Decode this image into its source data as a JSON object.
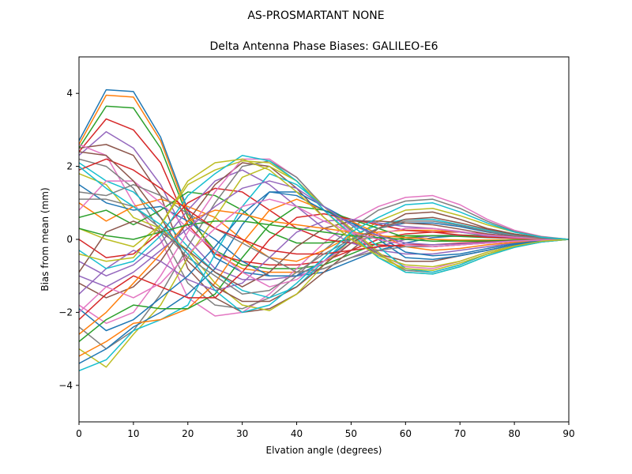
{
  "chart_data": {
    "type": "line",
    "suptitle": "AS-PROSMARTANT  NONE",
    "title": "Delta Antenna Phase Biases: GALILEO-E6",
    "xlabel": "Elvation angle (degrees)",
    "ylabel": "Bias from mean (mm)",
    "xlim": [
      0,
      90
    ],
    "ylim": [
      -5,
      5
    ],
    "xticks": [
      0,
      10,
      20,
      30,
      40,
      50,
      60,
      70,
      80,
      90
    ],
    "yticks": [
      -4,
      -2,
      0,
      2,
      4
    ],
    "grid": false,
    "legend": "none",
    "x": [
      0,
      5,
      10,
      15,
      20,
      25,
      30,
      35,
      40,
      45,
      50,
      55,
      60,
      65,
      70,
      75,
      80,
      85,
      90
    ],
    "colors": [
      "#1f77b4",
      "#ff7f0e",
      "#2ca02c",
      "#d62728",
      "#9467bd",
      "#8c564b",
      "#e377c2",
      "#7f7f7f",
      "#bcbd22",
      "#17becf"
    ],
    "series": [
      {
        "values": [
          2.7,
          4.1,
          4.05,
          2.8,
          0.8,
          -0.5,
          -0.9,
          -1.0,
          -1.0,
          -0.9,
          -0.6,
          -0.3,
          -0.1,
          0.05,
          0.1,
          0.1,
          0.08,
          0.04,
          0.0
        ]
      },
      {
        "values": [
          2.6,
          3.95,
          3.9,
          2.7,
          0.7,
          -0.4,
          -0.8,
          -0.9,
          -0.9,
          -0.8,
          -0.5,
          -0.2,
          0.0,
          0.1,
          0.1,
          0.1,
          0.07,
          0.03,
          0.0
        ]
      },
      {
        "values": [
          2.5,
          3.65,
          3.6,
          2.5,
          0.6,
          -0.3,
          -0.7,
          -0.8,
          -0.8,
          -0.7,
          -0.4,
          -0.1,
          0.05,
          0.1,
          0.12,
          0.1,
          0.06,
          0.03,
          0.0
        ]
      },
      {
        "values": [
          2.4,
          3.3,
          3.0,
          2.1,
          0.4,
          -0.4,
          -0.6,
          -0.7,
          -0.7,
          -0.6,
          -0.3,
          0.0,
          0.15,
          0.2,
          0.2,
          0.15,
          0.08,
          0.03,
          0.0
        ]
      },
      {
        "values": [
          2.3,
          2.95,
          2.5,
          1.5,
          0.0,
          -0.8,
          -1.1,
          -1.1,
          -1.0,
          -0.8,
          -0.5,
          -0.2,
          0.0,
          0.1,
          0.1,
          0.08,
          0.05,
          0.02,
          0.0
        ]
      },
      {
        "values": [
          2.5,
          2.6,
          2.3,
          1.2,
          -0.8,
          -1.6,
          -2.0,
          -1.9,
          -1.5,
          -0.9,
          -0.3,
          0.3,
          0.7,
          0.75,
          0.55,
          0.3,
          0.15,
          0.05,
          0.0
        ]
      },
      {
        "values": [
          2.6,
          2.3,
          1.0,
          0.0,
          -1.6,
          -2.1,
          -2.0,
          -1.5,
          -0.8,
          -0.1,
          0.5,
          0.9,
          1.15,
          1.2,
          0.95,
          0.55,
          0.25,
          0.08,
          0.0
        ]
      },
      {
        "values": [
          2.2,
          2.0,
          1.4,
          0.2,
          -1.2,
          -1.8,
          -1.9,
          -1.6,
          -1.0,
          -0.3,
          0.3,
          0.8,
          1.05,
          1.1,
          0.85,
          0.5,
          0.22,
          0.07,
          0.0
        ]
      },
      {
        "values": [
          1.8,
          1.5,
          0.6,
          0.3,
          -0.3,
          -1.2,
          -1.8,
          -1.95,
          -1.5,
          -0.7,
          0.0,
          0.5,
          0.8,
          0.85,
          0.65,
          0.4,
          0.2,
          0.06,
          0.0
        ]
      },
      {
        "values": [
          2.1,
          1.6,
          1.3,
          0.6,
          -0.2,
          -0.9,
          -1.4,
          -1.6,
          -1.3,
          -0.6,
          0.1,
          0.4,
          0.55,
          0.55,
          0.4,
          0.25,
          0.12,
          0.04,
          0.0
        ]
      },
      {
        "values": [
          1.5,
          1.0,
          0.8,
          0.9,
          0.5,
          0.0,
          -0.6,
          -1.0,
          -1.0,
          -0.6,
          0.0,
          0.3,
          0.45,
          0.45,
          0.35,
          0.2,
          0.1,
          0.03,
          0.0
        ]
      },
      {
        "values": [
          1.0,
          0.5,
          0.9,
          1.1,
          0.9,
          0.6,
          0.0,
          -0.5,
          -0.6,
          -0.3,
          0.1,
          0.2,
          0.25,
          0.25,
          0.2,
          0.12,
          0.06,
          0.02,
          0.0
        ]
      },
      {
        "values": [
          0.6,
          0.8,
          0.4,
          0.8,
          1.3,
          1.2,
          0.8,
          0.2,
          -0.1,
          -0.1,
          0.0,
          0.05,
          0.1,
          0.1,
          0.08,
          0.05,
          0.03,
          0.01,
          0.0
        ]
      },
      {
        "values": [
          0.0,
          -0.5,
          -0.4,
          0.2,
          1.0,
          1.4,
          1.3,
          0.8,
          0.3,
          0.0,
          -0.1,
          -0.15,
          -0.2,
          -0.2,
          -0.15,
          -0.1,
          -0.05,
          -0.02,
          0.0
        ]
      },
      {
        "values": [
          -0.6,
          -1.0,
          -0.7,
          -0.1,
          0.8,
          1.6,
          1.9,
          1.5,
          0.9,
          0.3,
          -0.1,
          -0.3,
          -0.4,
          -0.4,
          -0.3,
          -0.2,
          -0.1,
          -0.03,
          0.0
        ]
      },
      {
        "values": [
          -1.2,
          -1.6,
          -1.3,
          -0.6,
          0.5,
          1.5,
          2.1,
          2.0,
          1.4,
          0.6,
          0.0,
          -0.4,
          -0.6,
          -0.6,
          -0.45,
          -0.3,
          -0.15,
          -0.05,
          0.0
        ]
      },
      {
        "values": [
          -1.8,
          -2.3,
          -2.0,
          -1.0,
          0.2,
          1.3,
          2.2,
          2.2,
          1.7,
          0.9,
          0.2,
          -0.4,
          -0.75,
          -0.8,
          -0.6,
          -0.35,
          -0.18,
          -0.06,
          0.0
        ]
      },
      {
        "values": [
          -2.4,
          -3.0,
          -2.5,
          -1.5,
          -0.2,
          1.0,
          2.0,
          2.15,
          1.7,
          0.9,
          0.25,
          -0.4,
          -0.85,
          -0.9,
          -0.7,
          -0.4,
          -0.2,
          -0.07,
          0.0
        ]
      },
      {
        "values": [
          -3.0,
          -3.5,
          -2.6,
          -1.8,
          -0.5,
          0.6,
          1.7,
          2.0,
          1.6,
          0.9,
          0.3,
          -0.35,
          -0.9,
          -0.95,
          -0.75,
          -0.45,
          -0.22,
          -0.07,
          0.0
        ]
      },
      {
        "values": [
          -3.6,
          -3.3,
          -2.5,
          -2.2,
          -1.8,
          -0.4,
          0.9,
          1.8,
          1.5,
          0.9,
          0.4,
          -0.2,
          -0.8,
          -0.9,
          -0.7,
          -0.4,
          -0.2,
          -0.07,
          0.0
        ]
      },
      {
        "values": [
          -3.4,
          -3.0,
          -2.4,
          -2.0,
          -1.5,
          -0.8,
          0.4,
          1.3,
          1.3,
          0.9,
          0.5,
          0.0,
          -0.5,
          -0.55,
          -0.45,
          -0.3,
          -0.15,
          -0.05,
          0.0
        ]
      },
      {
        "values": [
          -3.2,
          -2.8,
          -2.3,
          -2.2,
          -1.9,
          -1.2,
          -0.1,
          0.8,
          1.1,
          0.8,
          0.5,
          0.15,
          -0.2,
          -0.3,
          -0.25,
          -0.15,
          -0.08,
          -0.03,
          0.0
        ]
      },
      {
        "values": [
          -2.8,
          -2.2,
          -1.8,
          -1.9,
          -1.9,
          -1.5,
          -0.5,
          0.4,
          0.9,
          0.8,
          0.55,
          0.3,
          0.05,
          0.0,
          -0.05,
          -0.05,
          -0.03,
          -0.01,
          0.0
        ]
      },
      {
        "values": [
          -2.2,
          -1.5,
          -1.0,
          -1.3,
          -1.6,
          -1.6,
          -0.9,
          0.0,
          0.6,
          0.7,
          0.55,
          0.4,
          0.25,
          0.2,
          0.12,
          0.06,
          0.03,
          0.01,
          0.0
        ]
      },
      {
        "values": [
          -1.5,
          -0.8,
          -0.3,
          -0.6,
          -1.1,
          -1.4,
          -1.2,
          -0.5,
          0.2,
          0.5,
          0.55,
          0.45,
          0.35,
          0.3,
          0.2,
          0.1,
          0.05,
          0.02,
          0.0
        ]
      },
      {
        "values": [
          -0.9,
          0.2,
          0.5,
          0.2,
          -0.3,
          -0.9,
          -1.3,
          -0.9,
          -0.2,
          0.3,
          0.5,
          0.5,
          0.45,
          0.4,
          0.28,
          0.15,
          0.07,
          0.02,
          0.0
        ]
      },
      {
        "values": [
          0.8,
          1.6,
          1.6,
          1.0,
          0.3,
          -0.3,
          -0.9,
          -1.3,
          -1.1,
          -0.6,
          -0.1,
          0.15,
          0.3,
          0.3,
          0.22,
          0.12,
          0.06,
          0.02,
          0.0
        ]
      },
      {
        "values": [
          1.3,
          1.2,
          1.5,
          1.2,
          0.7,
          0.3,
          -0.1,
          -0.5,
          -0.9,
          -0.8,
          -0.5,
          -0.3,
          -0.2,
          -0.2,
          -0.15,
          -0.1,
          -0.05,
          -0.02,
          0.0
        ]
      },
      {
        "values": [
          0.3,
          0.0,
          -0.2,
          0.4,
          1.5,
          1.9,
          2.15,
          2.1,
          1.6,
          0.8,
          0.1,
          -0.5,
          -0.8,
          -0.85,
          -0.65,
          -0.4,
          -0.2,
          -0.06,
          0.0
        ]
      },
      {
        "values": [
          -0.3,
          -0.8,
          -0.6,
          0.1,
          1.2,
          1.8,
          2.3,
          2.15,
          1.6,
          0.8,
          0.15,
          -0.5,
          -0.9,
          -0.95,
          -0.75,
          -0.45,
          -0.22,
          -0.07,
          0.0
        ]
      },
      {
        "values": [
          -1.9,
          -2.5,
          -2.2,
          -1.6,
          -1.0,
          -0.2,
          0.7,
          1.3,
          1.2,
          0.8,
          0.45,
          0.1,
          -0.35,
          -0.45,
          -0.4,
          -0.25,
          -0.12,
          -0.04,
          0.0
        ]
      },
      {
        "values": [
          -2.6,
          -2.0,
          -1.2,
          -0.4,
          0.5,
          0.8,
          0.7,
          0.5,
          0.4,
          0.3,
          0.2,
          0.1,
          0.05,
          0.0,
          -0.02,
          -0.02,
          -0.01,
          0.0,
          0.0
        ]
      },
      {
        "values": [
          0.3,
          0.1,
          0.0,
          0.2,
          0.4,
          0.5,
          0.5,
          0.4,
          0.3,
          0.2,
          0.1,
          0.05,
          0.0,
          -0.05,
          -0.05,
          -0.04,
          -0.02,
          -0.01,
          0.0
        ]
      },
      {
        "values": [
          1.9,
          2.2,
          1.9,
          1.4,
          0.8,
          0.3,
          0.0,
          -0.3,
          -0.4,
          -0.4,
          -0.3,
          -0.2,
          -0.15,
          -0.15,
          -0.1,
          -0.07,
          -0.04,
          -0.01,
          0.0
        ]
      },
      {
        "values": [
          -1.0,
          -1.3,
          -0.9,
          -0.3,
          0.3,
          0.9,
          1.4,
          1.6,
          1.4,
          0.9,
          0.4,
          0.1,
          -0.1,
          -0.15,
          -0.12,
          -0.08,
          -0.04,
          -0.01,
          0.0
        ]
      },
      {
        "values": [
          2.4,
          2.3,
          1.6,
          0.6,
          -0.6,
          -1.3,
          -1.7,
          -1.7,
          -1.3,
          -0.7,
          -0.1,
          0.3,
          0.55,
          0.6,
          0.45,
          0.28,
          0.14,
          0.04,
          0.0
        ]
      },
      {
        "values": [
          -2.0,
          -1.3,
          -1.6,
          -1.2,
          -0.4,
          0.3,
          0.9,
          1.1,
          0.9,
          0.5,
          0.2,
          0.0,
          -0.15,
          -0.2,
          -0.15,
          -0.1,
          -0.05,
          -0.02,
          0.0
        ]
      },
      {
        "values": [
          1.1,
          1.1,
          0.9,
          0.3,
          -0.5,
          -1.0,
          -1.5,
          -1.4,
          -0.9,
          -0.4,
          0.0,
          0.3,
          0.5,
          0.5,
          0.38,
          0.22,
          0.1,
          0.03,
          0.0
        ]
      },
      {
        "values": [
          -0.4,
          -0.6,
          -0.5,
          0.4,
          1.6,
          2.1,
          2.2,
          1.9,
          1.3,
          0.6,
          0.0,
          -0.45,
          -0.7,
          -0.75,
          -0.6,
          -0.35,
          -0.18,
          -0.05,
          0.0
        ]
      },
      {
        "values": [
          2.0,
          1.4,
          0.9,
          0.4,
          -0.4,
          -1.4,
          -2.0,
          -1.8,
          -1.2,
          -0.5,
          0.2,
          0.6,
          0.95,
          1.0,
          0.75,
          0.45,
          0.2,
          0.06,
          0.0
        ]
      }
    ]
  }
}
